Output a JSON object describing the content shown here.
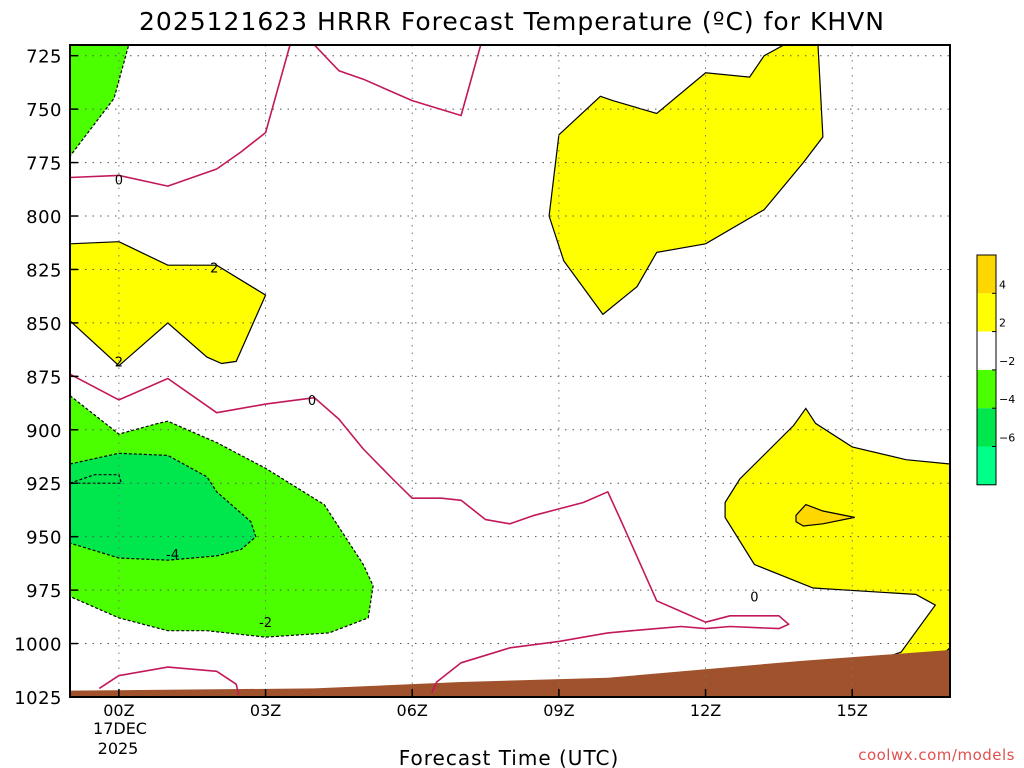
{
  "chart_data": {
    "type": "contour",
    "title": "2025121623 HRRR Forecast Temperature (ºC) for KHVN",
    "xlabel": "Forecast Time (UTC)",
    "ylabel": "",
    "credit": "coolwx.com/models",
    "colors": {
      "ground": "#a0522d",
      "warm_2_4": "#ffff00",
      "warm_4_plus": "#ffd700",
      "cold_2_4": "#4cff00",
      "cold_4_6": "#00e64d",
      "cold_6_plus": "#00ff88",
      "zero_line": "#c2185b",
      "credit": "#e05050"
    },
    "x_axis": {
      "range_hours": [
        -1,
        17
      ],
      "ticks": [
        {
          "hour": 0,
          "label": "00Z"
        },
        {
          "hour": 3,
          "label": "03Z"
        },
        {
          "hour": 6,
          "label": "06Z"
        },
        {
          "hour": 9,
          "label": "09Z"
        },
        {
          "hour": 12,
          "label": "12Z"
        },
        {
          "hour": 15,
          "label": "15Z"
        }
      ],
      "date_label": "17DEC",
      "year_label": "2025"
    },
    "y_axis": {
      "range_hpa": [
        1025,
        720
      ],
      "ticks": [
        725,
        750,
        775,
        800,
        825,
        850,
        875,
        900,
        925,
        950,
        975,
        1000,
        1025
      ]
    },
    "colorbar": {
      "bins": [
        {
          "color": "#ffd700",
          "label": "4"
        },
        {
          "color": "#ffff00",
          "label": "2"
        },
        {
          "color": "#ffffff",
          "label": "−2"
        },
        {
          "color": "#4cff00",
          "label": "−4"
        },
        {
          "color": "#00e64d",
          "label": "−6"
        },
        {
          "color": "#00ff88",
          "label": ""
        }
      ]
    },
    "contour_labels": [
      {
        "text": "0",
        "hour": 0.0,
        "hpa": 783
      },
      {
        "text": "2",
        "hour": 1.95,
        "hpa": 824
      },
      {
        "text": "2",
        "hour": 0.0,
        "hpa": 868
      },
      {
        "text": "0",
        "hour": 3.95,
        "hpa": 886
      },
      {
        "text": "-4",
        "hour": 1.1,
        "hpa": 958
      },
      {
        "text": "-2",
        "hour": 3.0,
        "hpa": 990
      },
      {
        "text": "0",
        "hour": 13.0,
        "hpa": 978
      }
    ],
    "regions": [
      {
        "name": "cold-top-left",
        "fill": "cold_2_4",
        "stroke": "dashed",
        "points": [
          [
            -1,
            720
          ],
          [
            0.2,
            720
          ],
          [
            -0.1,
            745
          ],
          [
            -1,
            772
          ]
        ]
      },
      {
        "name": "warm-left-850",
        "fill": "warm_2_4",
        "stroke": "solid",
        "points": [
          [
            -1,
            813
          ],
          [
            0,
            812
          ],
          [
            1,
            823
          ],
          [
            2,
            823
          ],
          [
            3,
            837
          ],
          [
            2.4,
            868
          ],
          [
            2.1,
            869
          ],
          [
            1.8,
            866
          ],
          [
            1,
            850
          ],
          [
            0,
            870
          ],
          [
            -1,
            849
          ]
        ]
      },
      {
        "name": "warm-upper-right",
        "fill": "warm_2_4",
        "stroke": "solid",
        "points": [
          [
            9.85,
            744
          ],
          [
            10.1,
            746
          ],
          [
            11,
            752
          ],
          [
            12,
            733
          ],
          [
            12.9,
            735
          ],
          [
            13.2,
            725
          ],
          [
            13.6,
            720
          ],
          [
            14.3,
            720
          ],
          [
            14.4,
            763
          ],
          [
            14,
            775
          ],
          [
            13.2,
            797
          ],
          [
            12,
            813
          ],
          [
            11,
            817
          ],
          [
            10.6,
            833
          ],
          [
            9.9,
            846
          ],
          [
            9.1,
            821
          ],
          [
            8.8,
            800
          ],
          [
            9,
            762
          ]
        ]
      },
      {
        "name": "warm-lower-right",
        "fill": "warm_2_4",
        "stroke": "solid",
        "points": [
          [
            12.4,
            934
          ],
          [
            12.7,
            923
          ],
          [
            13.8,
            898
          ],
          [
            14.05,
            890
          ],
          [
            14.25,
            897
          ],
          [
            15,
            908
          ],
          [
            16.1,
            914
          ],
          [
            17,
            916
          ],
          [
            17,
            1025
          ],
          [
            13.9,
            1024
          ],
          [
            15,
            1012
          ],
          [
            16,
            1004
          ],
          [
            16.7,
            982
          ],
          [
            16.3,
            977
          ],
          [
            14.2,
            974
          ],
          [
            13,
            963
          ],
          [
            12.4,
            941
          ]
        ]
      },
      {
        "name": "warm-4-patch",
        "fill": "warm_4_plus",
        "stroke": "solid",
        "points": [
          [
            13.85,
            940
          ],
          [
            14.05,
            935
          ],
          [
            14.4,
            938
          ],
          [
            15.05,
            941
          ],
          [
            14.4,
            944
          ],
          [
            14.0,
            945
          ],
          [
            13.85,
            943
          ]
        ]
      },
      {
        "name": "warm-4-corner",
        "fill": "warm_4_plus",
        "stroke": "solid",
        "points": [
          [
            16.85,
            1005
          ],
          [
            17,
            1002
          ],
          [
            17,
            1020
          ],
          [
            16.85,
            1020
          ]
        ]
      },
      {
        "name": "cold-lower-left-2",
        "fill": "cold_2_4",
        "stroke": "dashed",
        "points": [
          [
            -1,
            884
          ],
          [
            0,
            902
          ],
          [
            0.8,
            897
          ],
          [
            1,
            896
          ],
          [
            2,
            906
          ],
          [
            3,
            918
          ],
          [
            4.2,
            935
          ],
          [
            5,
            963
          ],
          [
            5.2,
            973
          ],
          [
            5.1,
            988
          ],
          [
            4.3,
            995
          ],
          [
            3,
            997
          ],
          [
            1.8,
            994
          ],
          [
            1,
            994
          ],
          [
            0,
            988
          ],
          [
            -1,
            978
          ]
        ]
      },
      {
        "name": "cold-lower-left-4",
        "fill": "cold_4_6",
        "stroke": "dashed",
        "points": [
          [
            -1,
            916
          ],
          [
            0,
            911
          ],
          [
            1,
            912
          ],
          [
            1.8,
            922
          ],
          [
            2,
            929
          ],
          [
            2.7,
            943
          ],
          [
            2.8,
            950
          ],
          [
            2.5,
            956
          ],
          [
            2,
            959
          ],
          [
            1,
            961
          ],
          [
            0,
            960
          ],
          [
            -1,
            953
          ]
        ]
      },
      {
        "name": "cold-small-loop",
        "fill": "none",
        "stroke": "dashed",
        "points": [
          [
            -1,
            925
          ],
          [
            -0.5,
            921
          ],
          [
            0,
            921
          ],
          [
            0.05,
            925
          ],
          [
            -0.5,
            925
          ]
        ]
      }
    ],
    "zero_lines": [
      {
        "name": "zero-top",
        "points": [
          [
            -1,
            782
          ],
          [
            0,
            781
          ],
          [
            1,
            786
          ],
          [
            2,
            778
          ],
          [
            2.5,
            770
          ],
          [
            3,
            761
          ],
          [
            3.5,
            720
          ],
          [
            4,
            720
          ],
          [
            4.5,
            732
          ],
          [
            5,
            736
          ],
          [
            6,
            746
          ],
          [
            7,
            753
          ],
          [
            7.4,
            720
          ]
        ]
      },
      {
        "name": "zero-mid",
        "points": [
          [
            -1,
            874
          ],
          [
            0,
            886
          ],
          [
            1,
            876
          ],
          [
            2,
            892
          ],
          [
            3,
            888
          ],
          [
            4,
            885
          ],
          [
            4.5,
            895
          ],
          [
            5,
            909
          ],
          [
            5.6,
            923
          ],
          [
            6,
            932
          ],
          [
            6.6,
            932
          ],
          [
            7,
            933
          ],
          [
            7.5,
            942
          ],
          [
            8,
            944
          ],
          [
            8.5,
            940
          ],
          [
            9,
            937
          ],
          [
            9.5,
            934
          ],
          [
            10,
            929
          ],
          [
            10.3,
            944
          ],
          [
            11,
            980
          ],
          [
            11.5,
            985
          ],
          [
            12,
            990
          ],
          [
            12.5,
            987
          ],
          [
            12.7,
            987
          ],
          [
            13.5,
            987
          ],
          [
            13.7,
            991
          ],
          [
            13.5,
            993
          ],
          [
            12.5,
            992
          ],
          [
            12,
            993
          ],
          [
            11.5,
            992
          ],
          [
            11,
            993
          ],
          [
            10.5,
            994
          ],
          [
            10,
            995
          ],
          [
            9,
            999
          ],
          [
            8,
            1002
          ],
          [
            7,
            1009
          ],
          [
            6.5,
            1018
          ],
          [
            6.4,
            1023
          ]
        ]
      },
      {
        "name": "zero-bottom",
        "points": [
          [
            -0.4,
            1021
          ],
          [
            0,
            1015
          ],
          [
            1,
            1011
          ],
          [
            2,
            1013
          ],
          [
            2.4,
            1019
          ],
          [
            2.45,
            1024
          ]
        ]
      }
    ],
    "ground": [
      [
        -1,
        1028
      ],
      [
        -1,
        1022
      ],
      [
        4,
        1021
      ],
      [
        7,
        1018
      ],
      [
        10,
        1016
      ],
      [
        14,
        1008
      ],
      [
        17,
        1003
      ],
      [
        17,
        1028
      ]
    ]
  }
}
